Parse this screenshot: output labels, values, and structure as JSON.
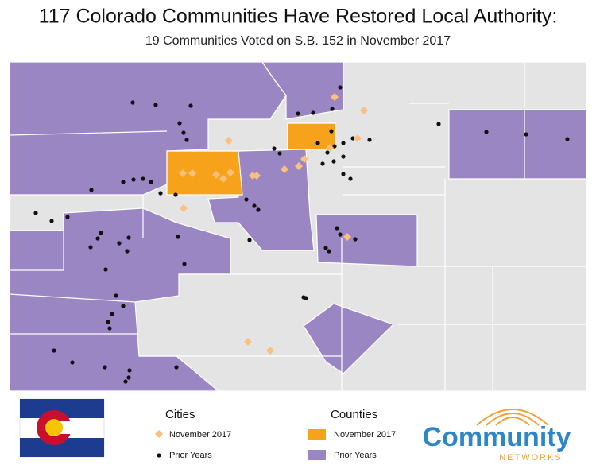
{
  "header": {
    "title": "117 Colorado Communities Have Restored Local Authority:",
    "subtitle": "19 Communities Voted on S.B. 152 in November 2017"
  },
  "legend": {
    "cities": {
      "title": "Cities",
      "items": [
        "November 2017",
        "Prior Years"
      ]
    },
    "counties": {
      "title": "Counties",
      "items": [
        "November 2017",
        "Prior Years"
      ]
    }
  },
  "logo": {
    "name": "Community",
    "tagline": "NETWORKS"
  }
}
